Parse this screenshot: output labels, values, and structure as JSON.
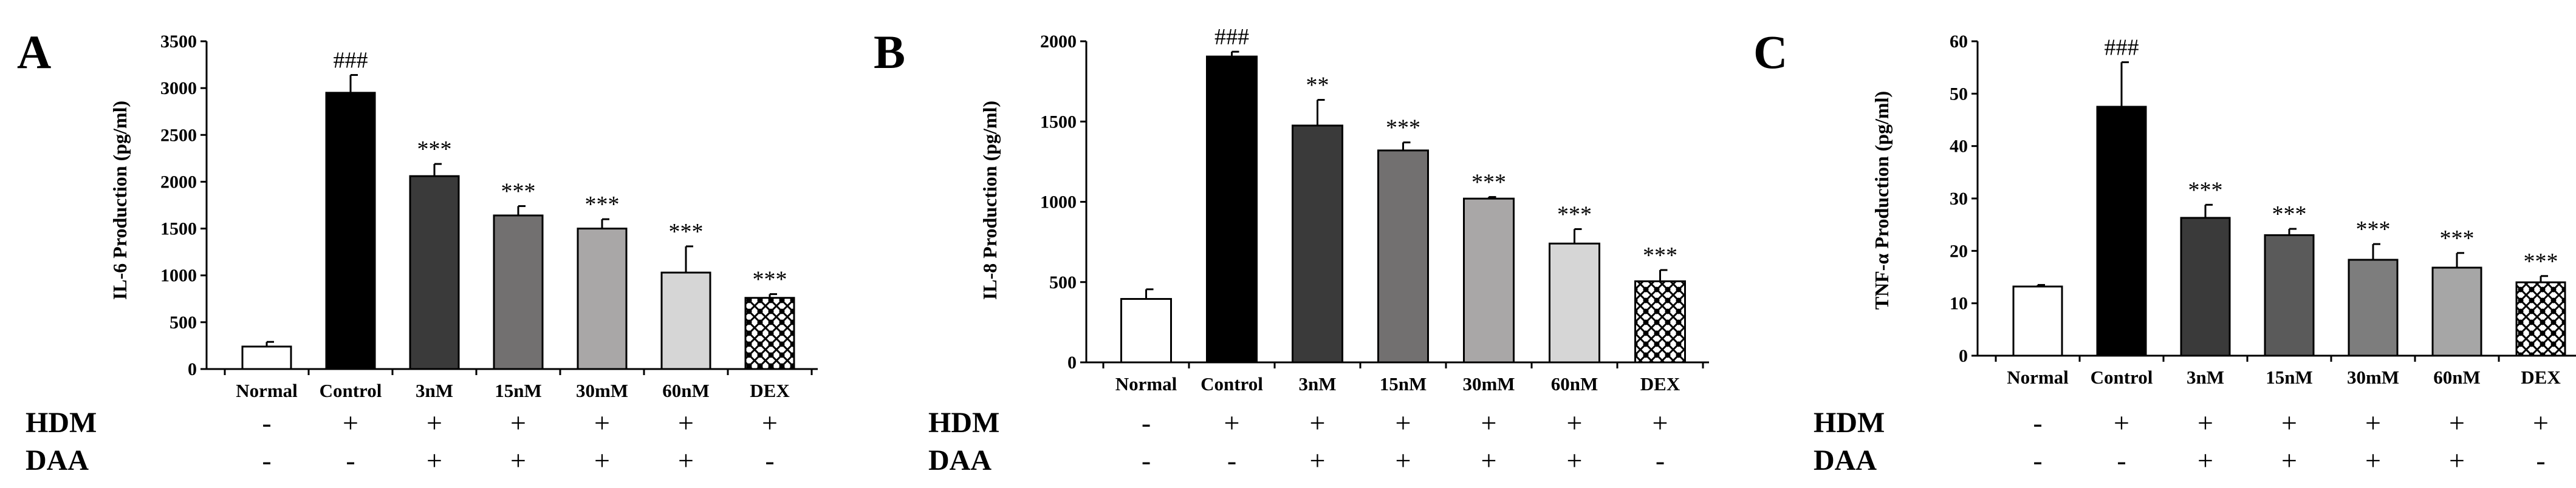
{
  "figure": {
    "categories": [
      "Normal",
      "Control",
      "3nM",
      "15nM",
      "30mM",
      "60nM",
      "DEX"
    ],
    "treatment_rows": [
      {
        "label": "HDM",
        "signs": [
          "-",
          "+",
          "+",
          "+",
          "+",
          "+",
          "+"
        ]
      },
      {
        "label": "DAA",
        "signs": [
          "-",
          "-",
          "+",
          "+",
          "+",
          "+",
          "-"
        ]
      }
    ]
  },
  "chart_data": [
    {
      "type": "bar",
      "panel": "A",
      "ylabel": "IL-6 Production (pg/ml)",
      "categories": [
        "Normal",
        "Control",
        "3nM",
        "15nM",
        "30mM",
        "60nM",
        "DEX"
      ],
      "values": [
        240,
        2950,
        2060,
        1640,
        1500,
        1030,
        760
      ],
      "errors": [
        50,
        190,
        130,
        100,
        100,
        280,
        40
      ],
      "significance": [
        "",
        "###",
        "***",
        "***",
        "***",
        "***",
        "***"
      ],
      "ylim": [
        0,
        3500
      ],
      "yticks": [
        "0",
        "500",
        "1000",
        "1500",
        "2000",
        "2500",
        "3000",
        "3500"
      ],
      "bar_fills": [
        "#ffffff",
        "#000000",
        "#3a3a3a",
        "#727070",
        "#a9a7a7",
        "#d6d6d6",
        "pattern"
      ]
    },
    {
      "type": "bar",
      "panel": "B",
      "ylabel": "IL-8 Production (pg/ml)",
      "categories": [
        "Normal",
        "Control",
        "3nM",
        "15nM",
        "30mM",
        "60nM",
        "DEX"
      ],
      "values": [
        395,
        1905,
        1475,
        1320,
        1020,
        740,
        505
      ],
      "errors": [
        60,
        30,
        160,
        50,
        10,
        90,
        70
      ],
      "significance": [
        "",
        "###",
        "**",
        "***",
        "***",
        "***",
        "***"
      ],
      "ylim": [
        0,
        2000
      ],
      "yticks": [
        "0",
        "500",
        "1000",
        "1500",
        "2000"
      ],
      "bar_fills": [
        "#ffffff",
        "#000000",
        "#3a3a3a",
        "#727070",
        "#a9a7a7",
        "#d6d6d6",
        "pattern"
      ]
    },
    {
      "type": "bar",
      "panel": "C",
      "ylabel": "TNF-α Production (pg/ml)",
      "categories": [
        "Normal",
        "Control",
        "3nM",
        "15nM",
        "30mM",
        "60nM",
        "DEX"
      ],
      "values": [
        13.2,
        47.5,
        26.3,
        23,
        18.3,
        16.8,
        14
      ],
      "errors": [
        0.3,
        8.5,
        2.5,
        1.2,
        3,
        2.8,
        1.2
      ],
      "significance": [
        "",
        "###",
        "***",
        "***",
        "***",
        "***",
        "***"
      ],
      "ylim": [
        0,
        60
      ],
      "yticks": [
        "0",
        "10",
        "20",
        "30",
        "40",
        "50",
        "60"
      ],
      "bar_fills": [
        "#ffffff",
        "#000000",
        "#3a3a3a",
        "#5a5a5a",
        "#7d7d7d",
        "#a6a6a6",
        "pattern"
      ]
    }
  ]
}
